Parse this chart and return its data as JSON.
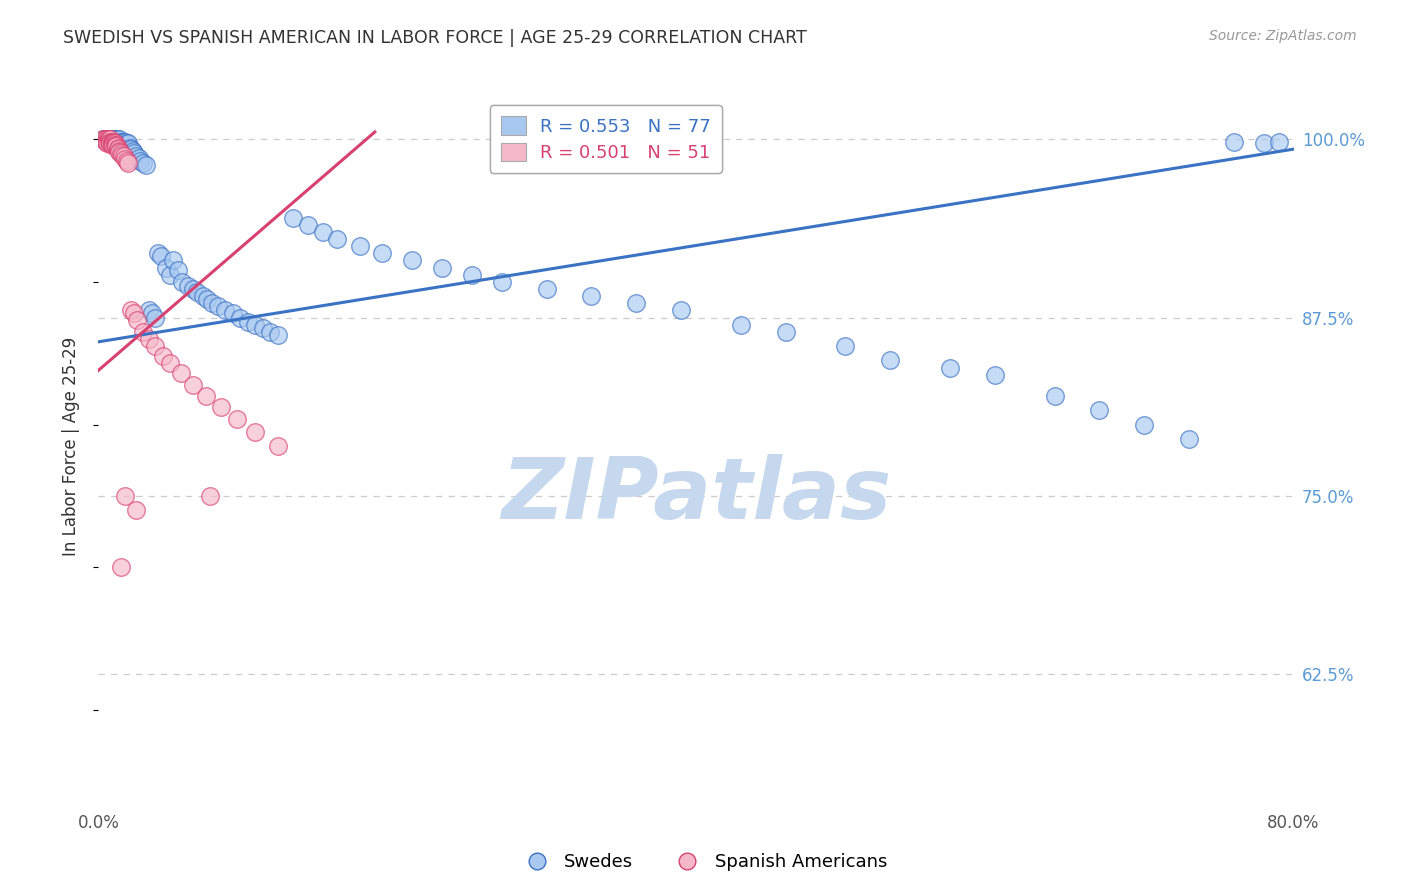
{
  "title": "SWEDISH VS SPANISH AMERICAN IN LABOR FORCE | AGE 25-29 CORRELATION CHART",
  "source": "Source: ZipAtlas.com",
  "ylabel": "In Labor Force | Age 25-29",
  "ytick_labels": [
    "100.0%",
    "87.5%",
    "75.0%",
    "62.5%"
  ],
  "ytick_values": [
    1.0,
    0.875,
    0.75,
    0.625
  ],
  "xmin": 0.0,
  "xmax": 0.8,
  "ymin": 0.535,
  "ymax": 1.035,
  "blue_R": 0.553,
  "blue_N": 77,
  "pink_R": 0.501,
  "pink_N": 51,
  "blue_color": "#A8C8F0",
  "pink_color": "#F5B8C8",
  "blue_line_color": "#3A72C4",
  "pink_line_color": "#D84070",
  "legend_label_blue": "Swedes",
  "legend_label_pink": "Spanish Americans",
  "watermark": "ZIPatlas",
  "title_color": "#333333",
  "source_color": "#999999",
  "ytick_color": "#5B9BD5",
  "xtick_color": "#555555",
  "grid_color": "#CCCCCC",
  "ylabel_color": "#333333",
  "watermark_color": "#C5D8EE",
  "blue_trend_x0": 0.0,
  "blue_trend_x1": 0.8,
  "blue_trend_y0": 0.858,
  "blue_trend_y1": 0.993,
  "pink_trend_x0": 0.0,
  "pink_trend_x1": 0.185,
  "pink_trend_y0": 0.838,
  "pink_trend_y1": 1.005,
  "dot_size": 160,
  "dot_alpha": 0.65,
  "dot_linewidth": 1.0,
  "blue_dots_x": [
    0.003,
    0.005,
    0.007,
    0.008,
    0.009,
    0.01,
    0.011,
    0.012,
    0.013,
    0.014,
    0.015,
    0.016,
    0.017,
    0.018,
    0.019,
    0.02,
    0.021,
    0.022,
    0.023,
    0.024,
    0.025,
    0.027,
    0.028,
    0.03,
    0.032,
    0.034,
    0.036,
    0.038,
    0.04,
    0.042,
    0.045,
    0.048,
    0.05,
    0.053,
    0.056,
    0.06,
    0.063,
    0.066,
    0.07,
    0.073,
    0.076,
    0.08,
    0.085,
    0.09,
    0.095,
    0.1,
    0.105,
    0.11,
    0.115,
    0.12,
    0.13,
    0.14,
    0.15,
    0.16,
    0.175,
    0.19,
    0.21,
    0.23,
    0.25,
    0.27,
    0.3,
    0.33,
    0.36,
    0.39,
    0.43,
    0.46,
    0.5,
    0.53,
    0.57,
    0.6,
    0.64,
    0.67,
    0.7,
    0.73,
    0.76,
    0.78,
    0.79
  ],
  "blue_dots_y": [
    1.0,
    1.0,
    1.0,
    1.0,
    1.0,
    1.0,
    1.0,
    1.0,
    1.0,
    1.0,
    0.998,
    0.998,
    0.998,
    0.998,
    0.997,
    0.997,
    0.994,
    0.993,
    0.992,
    0.99,
    0.988,
    0.987,
    0.985,
    0.983,
    0.982,
    0.88,
    0.878,
    0.875,
    0.92,
    0.918,
    0.91,
    0.905,
    0.915,
    0.908,
    0.9,
    0.897,
    0.895,
    0.893,
    0.89,
    0.888,
    0.885,
    0.883,
    0.88,
    0.878,
    0.875,
    0.872,
    0.87,
    0.868,
    0.865,
    0.863,
    0.945,
    0.94,
    0.935,
    0.93,
    0.925,
    0.92,
    0.915,
    0.91,
    0.905,
    0.9,
    0.895,
    0.89,
    0.885,
    0.88,
    0.87,
    0.865,
    0.855,
    0.845,
    0.84,
    0.835,
    0.82,
    0.81,
    0.8,
    0.79,
    0.998,
    0.997,
    0.998
  ],
  "pink_dots_x": [
    0.003,
    0.004,
    0.005,
    0.005,
    0.006,
    0.006,
    0.006,
    0.007,
    0.007,
    0.008,
    0.008,
    0.008,
    0.009,
    0.009,
    0.009,
    0.01,
    0.01,
    0.01,
    0.011,
    0.011,
    0.012,
    0.012,
    0.013,
    0.013,
    0.014,
    0.014,
    0.015,
    0.016,
    0.017,
    0.018,
    0.019,
    0.02,
    0.022,
    0.024,
    0.026,
    0.03,
    0.034,
    0.038,
    0.043,
    0.048,
    0.055,
    0.063,
    0.072,
    0.082,
    0.093,
    0.105,
    0.12,
    0.018,
    0.075,
    0.025,
    0.015
  ],
  "pink_dots_y": [
    1.0,
    1.0,
    1.0,
    0.998,
    1.0,
    0.998,
    0.997,
    1.0,
    0.998,
    1.0,
    0.998,
    0.997,
    0.998,
    0.997,
    0.996,
    0.998,
    0.997,
    0.996,
    0.997,
    0.996,
    0.996,
    0.995,
    0.994,
    0.993,
    0.992,
    0.991,
    0.99,
    0.989,
    0.988,
    0.986,
    0.985,
    0.983,
    0.88,
    0.878,
    0.873,
    0.865,
    0.86,
    0.855,
    0.848,
    0.843,
    0.836,
    0.828,
    0.82,
    0.812,
    0.804,
    0.795,
    0.785,
    0.75,
    0.75,
    0.74,
    0.7
  ]
}
